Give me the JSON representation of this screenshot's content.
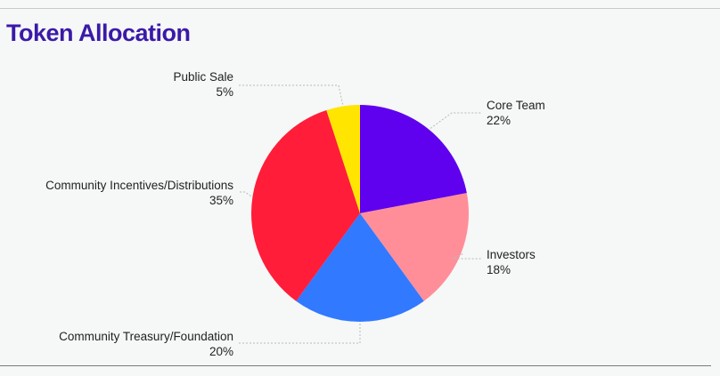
{
  "title": "Token Allocation",
  "colors": {
    "title": "#3a1aa8"
  },
  "chart_data": {
    "type": "pie",
    "title": "Token Allocation",
    "slices": [
      {
        "label": "Core Team",
        "value": 22,
        "display": "22%",
        "color": "#5f00ee"
      },
      {
        "label": "Investors",
        "value": 18,
        "display": "18%",
        "color": "#ff8e99"
      },
      {
        "label": "Community Treasury/Foundation",
        "value": 20,
        "display": "20%",
        "color": "#3179ff"
      },
      {
        "label": "Community Incentives/Distributions",
        "value": 35,
        "display": "35%",
        "color": "#ff1d3a"
      },
      {
        "label": "Public Sale",
        "value": 5,
        "display": "5%",
        "color": "#ffe500"
      }
    ]
  }
}
